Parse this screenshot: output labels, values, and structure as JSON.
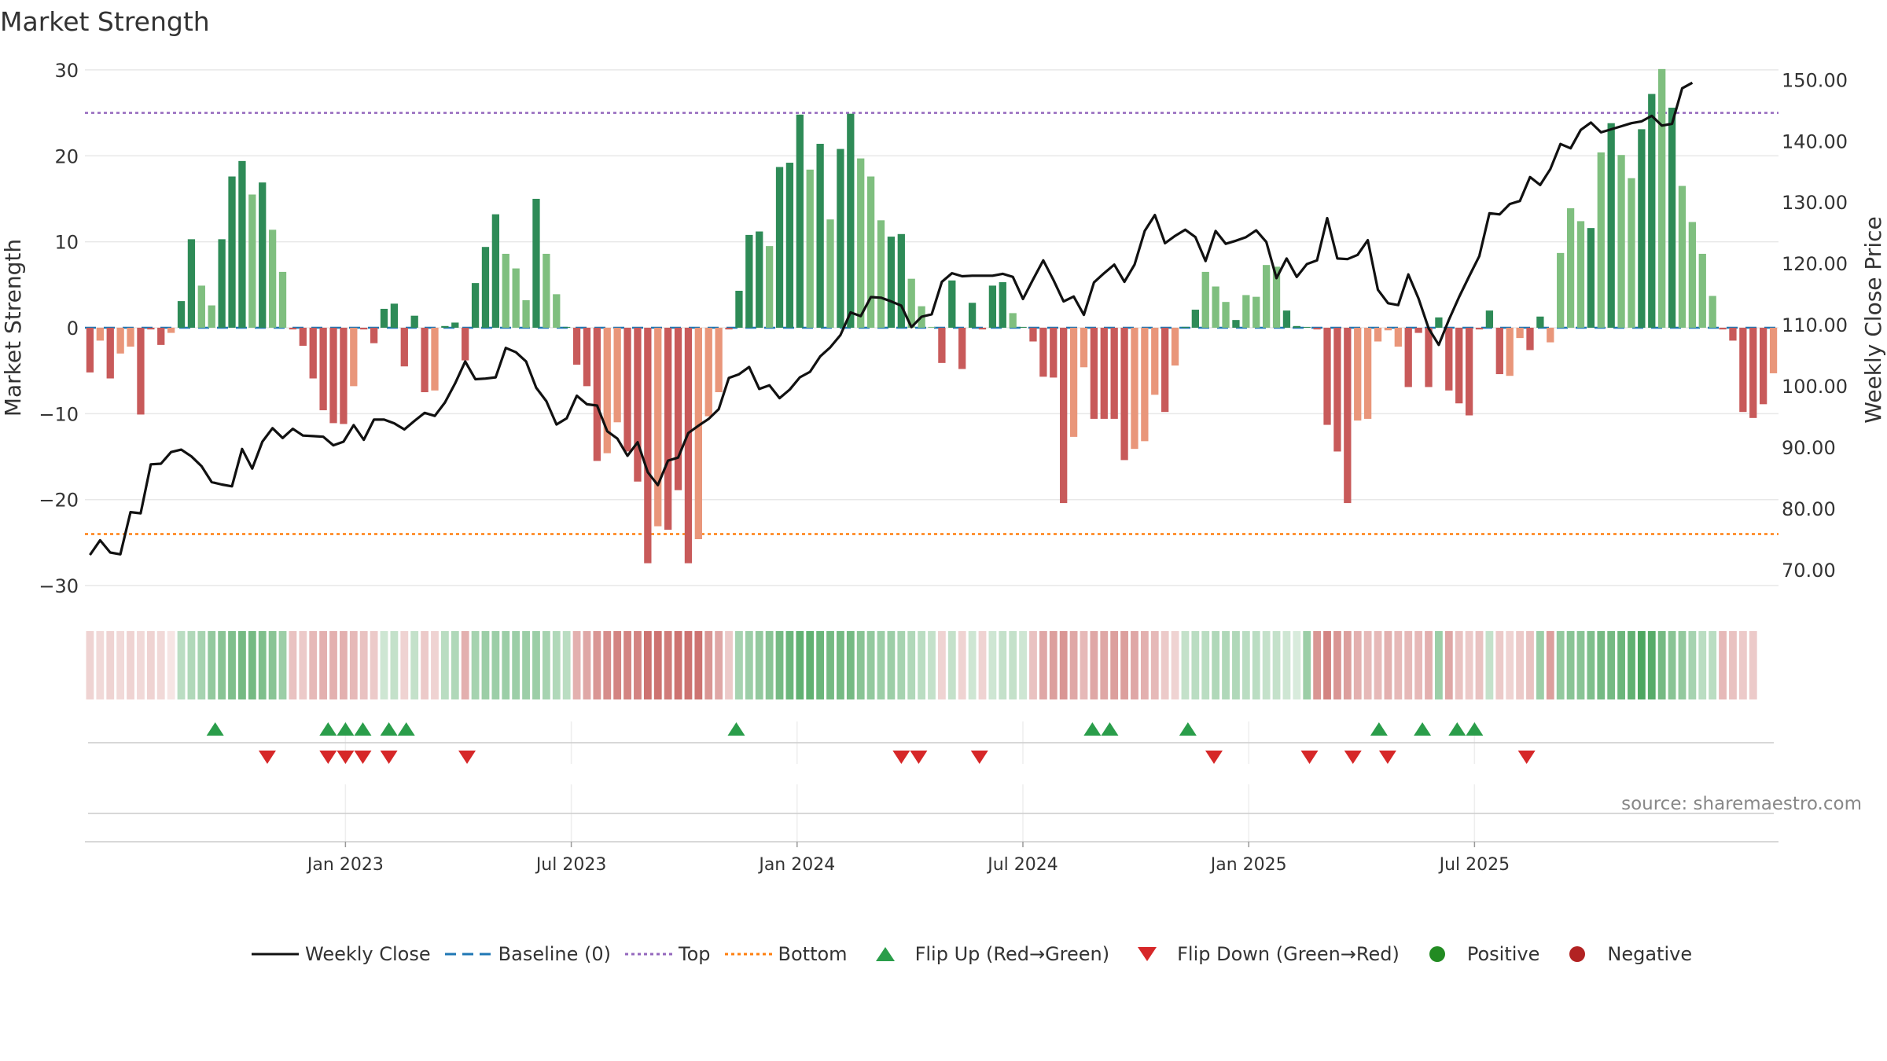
{
  "title": "Market Strength",
  "source": "source: sharemaestro.com",
  "colors": {
    "strong_green": "#2e8b57",
    "light_green": "#7fbf7f",
    "strong_red": "#c85a5a",
    "light_red": "#e9967a",
    "close_line": "#111111",
    "baseline": "#1f77b4",
    "top": "#9467bd",
    "bottom": "#ff7f0e",
    "flip_up": "#2a9d4a",
    "flip_down": "#d62728",
    "positive": "#228b22",
    "negative": "#b22222",
    "grid": "#e8e8e8"
  },
  "legend": [
    {
      "key": "close",
      "label": "Weekly Close"
    },
    {
      "key": "baseline",
      "label": "Baseline (0)"
    },
    {
      "key": "top",
      "label": "Top"
    },
    {
      "key": "bottom",
      "label": "Bottom"
    },
    {
      "key": "flip_up",
      "label": "Flip Up (Red→Green)"
    },
    {
      "key": "flip_down",
      "label": "Flip Down (Green→Red)"
    },
    {
      "key": "positive",
      "label": "Positive"
    },
    {
      "key": "negative",
      "label": "Negative"
    }
  ],
  "chart_data": {
    "type": "bar",
    "title": "Market Strength",
    "ylabel": "Market Strength",
    "y2label": "Weekly Close Price",
    "ylim": [
      -31,
      31
    ],
    "y2lim": [
      66,
      153
    ],
    "yticks": [
      30,
      20,
      10,
      0,
      -10,
      -20,
      -30
    ],
    "ytick_labels": [
      "30",
      "20",
      "10",
      "0",
      "−10",
      "−20",
      "−30"
    ],
    "y2ticks": [
      150,
      140,
      130,
      120,
      110,
      100,
      90,
      80,
      70
    ],
    "y2tick_labels": [
      "150.00",
      "140.00",
      "130.00",
      "120.00",
      "110.00",
      "100.00",
      "90.00",
      "80.00",
      "70.00"
    ],
    "top_level": 25,
    "bottom_level": -24,
    "baseline": 0,
    "x_week_range": [
      -30,
      165
    ],
    "xtick_weeks": [
      0,
      26,
      52,
      78,
      104,
      130
    ],
    "xtick_labels": [
      "Jan 2023",
      "Jul 2023",
      "Jan 2024",
      "Jul 2024",
      "Jan 2025",
      "Jul 2025"
    ],
    "strength": [
      -5.2,
      -1.5,
      -5.9,
      -3.0,
      -2.2,
      -10.1,
      -0.2,
      -2.0,
      -0.6,
      3.1,
      10.3,
      4.9,
      2.6,
      10.3,
      17.6,
      19.4,
      15.5,
      16.9,
      11.4,
      6.5,
      -0.2,
      -2.1,
      -5.9,
      -9.6,
      -11.1,
      -11.2,
      -6.8,
      -0.2,
      -1.8,
      2.2,
      2.8,
      -4.5,
      1.4,
      -7.5,
      -7.3,
      0.2,
      0.6,
      -3.8,
      5.2,
      9.4,
      13.2,
      8.6,
      6.9,
      3.2,
      15.0,
      8.6,
      3.9,
      0.1,
      -4.3,
      -6.8,
      -15.5,
      -14.6,
      -11.0,
      -14.4,
      -17.9,
      -27.4,
      -23.1,
      -23.5,
      -18.9,
      -27.4,
      -24.6,
      -10.3,
      -7.5,
      -0.2,
      4.3,
      10.8,
      11.2,
      9.5,
      18.7,
      19.2,
      24.8,
      18.4,
      21.4,
      12.6,
      20.8,
      24.9,
      19.7,
      17.6,
      12.5,
      10.6,
      10.9,
      5.7,
      2.5,
      0.1,
      -4.1,
      5.5,
      -4.8,
      2.9,
      -0.2,
      4.9,
      5.3,
      1.7,
      0.1,
      -1.6,
      -5.7,
      -5.8,
      -20.4,
      -12.7,
      -4.6,
      -10.6,
      -10.6,
      -10.6,
      -15.4,
      -14.1,
      -13.2,
      -7.8,
      -9.8,
      -4.4,
      0.1,
      2.1,
      6.5,
      4.8,
      3.0,
      0.9,
      3.8,
      3.6,
      7.3,
      7.1,
      2.0,
      0.2,
      0.1,
      -0.2,
      -11.3,
      -14.4,
      -20.4,
      -10.8,
      -10.6,
      -1.6,
      -0.3,
      -2.2,
      -6.9,
      -0.6,
      -6.9,
      1.2,
      -7.3,
      -8.8,
      -10.2,
      -0.2,
      2.0,
      -5.4,
      -5.6,
      -1.2,
      -2.6,
      1.3,
      -1.7,
      8.7,
      13.9,
      12.4,
      11.6,
      20.4,
      23.8,
      20.1,
      17.4,
      23.1,
      27.2,
      30.1,
      25.6,
      16.5,
      12.3,
      8.6,
      3.7,
      -0.2,
      -1.5,
      -9.8,
      -10.5,
      -8.9,
      -5.3
    ],
    "strength_light": [
      false,
      true,
      false,
      true,
      true,
      false,
      false,
      false,
      true,
      false,
      false,
      true,
      true,
      false,
      false,
      false,
      true,
      false,
      true,
      true,
      false,
      false,
      false,
      false,
      false,
      false,
      true,
      false,
      false,
      false,
      false,
      false,
      false,
      false,
      true,
      false,
      false,
      false,
      false,
      false,
      false,
      true,
      true,
      true,
      false,
      true,
      true,
      false,
      false,
      false,
      false,
      true,
      true,
      false,
      false,
      false,
      true,
      false,
      false,
      false,
      true,
      true,
      true,
      false,
      false,
      false,
      false,
      true,
      false,
      false,
      false,
      true,
      false,
      true,
      false,
      false,
      true,
      true,
      true,
      false,
      false,
      true,
      true,
      true,
      false,
      false,
      false,
      false,
      false,
      false,
      false,
      true,
      false,
      false,
      false,
      false,
      false,
      true,
      true,
      false,
      false,
      false,
      false,
      true,
      true,
      true,
      false,
      true,
      false,
      false,
      true,
      true,
      true,
      false,
      true,
      true,
      true,
      true,
      false,
      false,
      false,
      false,
      false,
      false,
      false,
      true,
      true,
      true,
      true,
      true,
      false,
      false,
      false,
      false,
      false,
      false,
      false,
      false,
      false,
      false,
      true,
      true,
      false,
      false,
      true,
      true,
      true,
      true,
      false,
      true,
      false,
      true,
      true,
      false,
      false,
      true,
      false,
      true,
      true,
      true,
      true,
      false,
      false,
      false,
      false,
      false,
      true,
      true
    ],
    "weekly_close": [
      72.4,
      74.8,
      72.8,
      72.5,
      79.4,
      79.2,
      87.2,
      87.3,
      89.2,
      89.6,
      88.5,
      86.9,
      84.3,
      83.9,
      83.6,
      89.7,
      86.5,
      90.9,
      93.1,
      91.5,
      93.0,
      91.9,
      91.8,
      91.7,
      90.3,
      90.9,
      93.6,
      91.2,
      94.5,
      94.5,
      93.9,
      92.9,
      94.3,
      95.6,
      95.1,
      97.3,
      100.4,
      104.0,
      101.1,
      101.2,
      101.4,
      106.2,
      105.5,
      104.0,
      99.7,
      97.5,
      93.7,
      94.7,
      98.4,
      97.0,
      96.8,
      92.6,
      91.4,
      88.6,
      90.8,
      85.9,
      83.8,
      87.8,
      88.3,
      92.3,
      93.5,
      94.6,
      96.2,
      101.3,
      101.9,
      103.1,
      99.5,
      100.1,
      98.0,
      99.4,
      101.4,
      102.3,
      104.8,
      106.3,
      108.3,
      112.0,
      111.4,
      114.5,
      114.4,
      113.8,
      113.1,
      109.6,
      111.3,
      111.7,
      117.0,
      118.4,
      117.9,
      118.0,
      118.0,
      118.0,
      118.3,
      117.8,
      114.2,
      117.4,
      120.5,
      117.3,
      113.8,
      114.6,
      111.6,
      116.9,
      118.4,
      119.8,
      117.0,
      119.8,
      125.3,
      127.9,
      123.3,
      124.5,
      125.5,
      124.3,
      120.4,
      125.3,
      123.2,
      123.7,
      124.3,
      125.4,
      123.5,
      117.6,
      120.8,
      117.8,
      119.9,
      120.5,
      127.4,
      120.8,
      120.7,
      121.4,
      123.8,
      115.7,
      113.5,
      113.2,
      118.2,
      114.3,
      109.4,
      106.7,
      110.8,
      114.5,
      117.9,
      121.2,
      128.2,
      128.0,
      129.7,
      130.2,
      134.1,
      132.8,
      135.4,
      139.5,
      138.8,
      141.8,
      143.0,
      141.4,
      141.9,
      142.4,
      142.9,
      143.2,
      144.1,
      142.5,
      142.8,
      148.6,
      149.5
    ],
    "ribbon_shade": [
      0.25,
      0.22,
      0.25,
      0.22,
      0.25,
      0.22,
      0.25,
      0.22,
      0.15,
      0.35,
      0.4,
      0.45,
      0.55,
      0.6,
      0.65,
      0.7,
      0.7,
      0.65,
      0.6,
      0.5,
      0.35,
      0.3,
      0.4,
      0.45,
      0.45,
      0.45,
      0.4,
      0.35,
      0.3,
      0.25,
      0.3,
      0.25,
      0.3,
      0.3,
      0.25,
      0.35,
      0.4,
      0.45,
      0.45,
      0.5,
      0.5,
      0.5,
      0.5,
      0.5,
      0.5,
      0.45,
      0.4,
      0.35,
      0.45,
      0.5,
      0.6,
      0.65,
      0.7,
      0.7,
      0.7,
      0.8,
      0.8,
      0.75,
      0.8,
      0.8,
      0.8,
      0.6,
      0.5,
      0.3,
      0.45,
      0.5,
      0.55,
      0.6,
      0.7,
      0.75,
      0.8,
      0.8,
      0.75,
      0.7,
      0.7,
      0.7,
      0.6,
      0.55,
      0.5,
      0.5,
      0.45,
      0.4,
      0.35,
      0.3,
      0.25,
      0.3,
      0.25,
      0.25,
      0.25,
      0.25,
      0.3,
      0.3,
      0.25,
      0.35,
      0.5,
      0.55,
      0.6,
      0.5,
      0.4,
      0.5,
      0.5,
      0.55,
      0.55,
      0.5,
      0.45,
      0.4,
      0.3,
      0.25,
      0.3,
      0.35,
      0.35,
      0.4,
      0.4,
      0.4,
      0.35,
      0.35,
      0.3,
      0.3,
      0.25,
      0.2,
      0.5,
      0.6,
      0.7,
      0.6,
      0.55,
      0.45,
      0.4,
      0.4,
      0.45,
      0.4,
      0.4,
      0.4,
      0.45,
      0.5,
      0.5,
      0.35,
      0.3,
      0.35,
      0.3,
      0.3,
      0.25,
      0.3,
      0.35,
      0.5,
      0.55,
      0.55,
      0.6,
      0.6,
      0.65,
      0.7,
      0.7,
      0.75,
      0.8,
      0.9,
      0.85,
      0.7,
      0.6,
      0.55,
      0.45,
      0.35,
      0.35,
      0.4,
      0.35,
      0.3,
      0.3
    ],
    "flip_up_weeks": [
      -15,
      -2,
      0,
      2,
      5,
      7,
      45,
      86,
      88,
      97,
      119,
      124,
      128,
      130
    ],
    "flip_down_weeks": [
      -9,
      -2,
      0,
      2,
      5,
      14,
      64,
      66,
      73,
      100,
      111,
      116,
      120,
      136
    ]
  }
}
